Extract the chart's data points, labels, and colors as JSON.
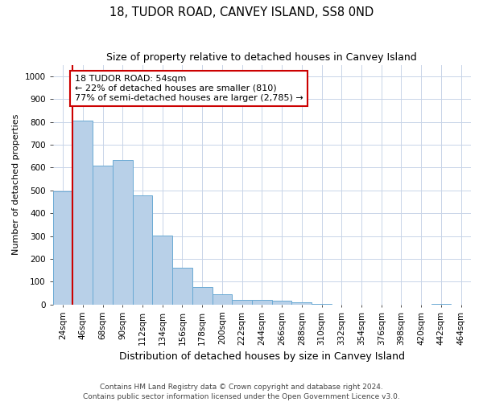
{
  "title": "18, TUDOR ROAD, CANVEY ISLAND, SS8 0ND",
  "subtitle": "Size of property relative to detached houses in Canvey Island",
  "xlabel": "Distribution of detached houses by size in Canvey Island",
  "ylabel": "Number of detached properties",
  "categories": [
    "24sqm",
    "46sqm",
    "68sqm",
    "90sqm",
    "112sqm",
    "134sqm",
    "156sqm",
    "178sqm",
    "200sqm",
    "222sqm",
    "244sqm",
    "266sqm",
    "288sqm",
    "310sqm",
    "332sqm",
    "354sqm",
    "376sqm",
    "398sqm",
    "420sqm",
    "442sqm",
    "464sqm"
  ],
  "values": [
    495,
    805,
    608,
    633,
    477,
    303,
    160,
    77,
    44,
    22,
    20,
    16,
    10,
    2,
    1,
    0,
    0,
    0,
    0,
    2,
    0
  ],
  "bar_color": "#b8d0e8",
  "bar_edge_color": "#6aaad4",
  "property_line_x": 1.0,
  "annotation_text": "18 TUDOR ROAD: 54sqm\n← 22% of detached houses are smaller (810)\n77% of semi-detached houses are larger (2,785) →",
  "annotation_box_color": "#ffffff",
  "annotation_box_edge": "#cc0000",
  "annotation_line_color": "#cc0000",
  "ylim": [
    0,
    1050
  ],
  "yticks": [
    0,
    100,
    200,
    300,
    400,
    500,
    600,
    700,
    800,
    900,
    1000
  ],
  "footnote1": "Contains HM Land Registry data © Crown copyright and database right 2024.",
  "footnote2": "Contains public sector information licensed under the Open Government Licence v3.0.",
  "background_color": "#ffffff",
  "grid_color": "#c8d4e8",
  "title_fontsize": 10.5,
  "subtitle_fontsize": 9,
  "xlabel_fontsize": 9,
  "ylabel_fontsize": 8,
  "tick_fontsize": 7.5,
  "annot_fontsize": 8,
  "footnote_fontsize": 6.5
}
